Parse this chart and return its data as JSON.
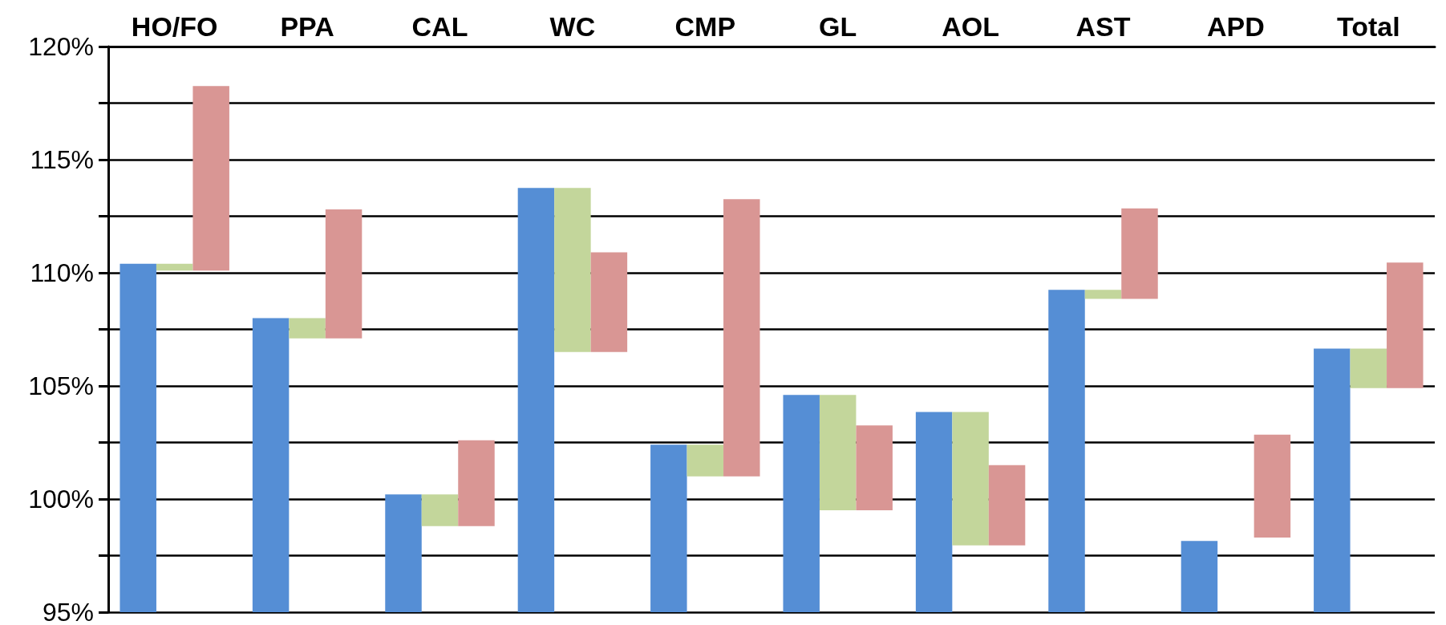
{
  "chart_data": {
    "type": "bar",
    "categories": [
      "HO/FO",
      "PPA",
      "CAL",
      "WC",
      "CMP",
      "GL",
      "AOL",
      "AST",
      "APD",
      "Total"
    ],
    "series": [
      {
        "color": "#558ed5",
        "values": [
          110.4,
          108.0,
          100.2,
          113.75,
          102.4,
          104.6,
          103.85,
          109.25,
          98.15,
          106.65
        ]
      },
      {
        "color": "#c3d69b",
        "base": [
          110.4,
          108.0,
          100.2,
          113.75,
          102.4,
          104.6,
          103.85,
          109.25,
          null,
          106.65
        ],
        "values": [
          -0.3,
          -0.9,
          -1.4,
          -7.25,
          -1.4,
          -5.1,
          -5.9,
          -0.4,
          null,
          -1.75
        ]
      },
      {
        "color": "#d99694",
        "base": [
          110.1,
          107.1,
          98.8,
          106.5,
          101.0,
          99.5,
          97.95,
          108.85,
          98.3,
          104.9
        ],
        "values": [
          8.15,
          5.7,
          3.8,
          4.4,
          12.25,
          3.75,
          3.55,
          4.0,
          4.55,
          5.55
        ]
      }
    ],
    "ylim": [
      95,
      120
    ],
    "yticks": [
      {
        "value": 95,
        "label": "95%"
      },
      {
        "value": 97.5,
        "label": null
      },
      {
        "value": 100,
        "label": "100%"
      },
      {
        "value": 102.5,
        "label": null
      },
      {
        "value": 105,
        "label": "105%"
      },
      {
        "value": 107.5,
        "label": null
      },
      {
        "value": 110,
        "label": "110%"
      },
      {
        "value": 112.5,
        "label": null
      },
      {
        "value": 115,
        "label": "115%"
      },
      {
        "value": 117.5,
        "label": null
      },
      {
        "value": 120,
        "label": "120%"
      }
    ],
    "grid": "y"
  }
}
